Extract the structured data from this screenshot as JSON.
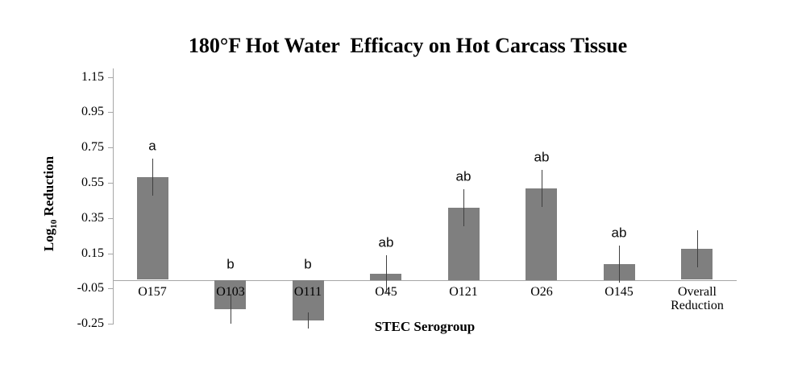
{
  "title": "180°F Hot Water  Efficacy on Hot Carcass Tissue",
  "ylabel_parts": {
    "base": "Log",
    "sub": "10",
    "rest": "Reduction"
  },
  "chart_data": {
    "type": "bar",
    "title": "180°F Hot Water  Efficacy on Hot Carcass Tissue",
    "xlabel": "STEC Serogroup",
    "ylabel": "Log10 Reduction",
    "ylim": [
      -0.25,
      1.15
    ],
    "ytick_step": 0.2,
    "yticks": [
      "1.15",
      "0.95",
      "0.75",
      "0.55",
      "0.35",
      "0.15",
      "-0.05",
      "-0.25"
    ],
    "ytick_values": [
      1.15,
      0.95,
      0.75,
      0.55,
      0.35,
      0.15,
      -0.05,
      -0.25
    ],
    "categories": [
      "O157",
      "O103",
      "O111",
      "O45",
      "O121",
      "O26",
      "O145",
      "Overall Reduction"
    ],
    "values": [
      0.58,
      -0.165,
      -0.23,
      0.035,
      0.41,
      0.52,
      0.09,
      0.175
    ],
    "error_bars": [
      0.105,
      0.085,
      0.045,
      0.105,
      0.105,
      0.105,
      0.105,
      0.105
    ],
    "sig_letters": [
      "a",
      "b",
      "b",
      "ab",
      "ab",
      "ab",
      "ab",
      ""
    ],
    "grid": false,
    "legend": false,
    "bar_color": "#7f7f7f",
    "error_bar_color": "#404040",
    "axis_color": "#a6a6a6",
    "text_color": "#000000"
  }
}
